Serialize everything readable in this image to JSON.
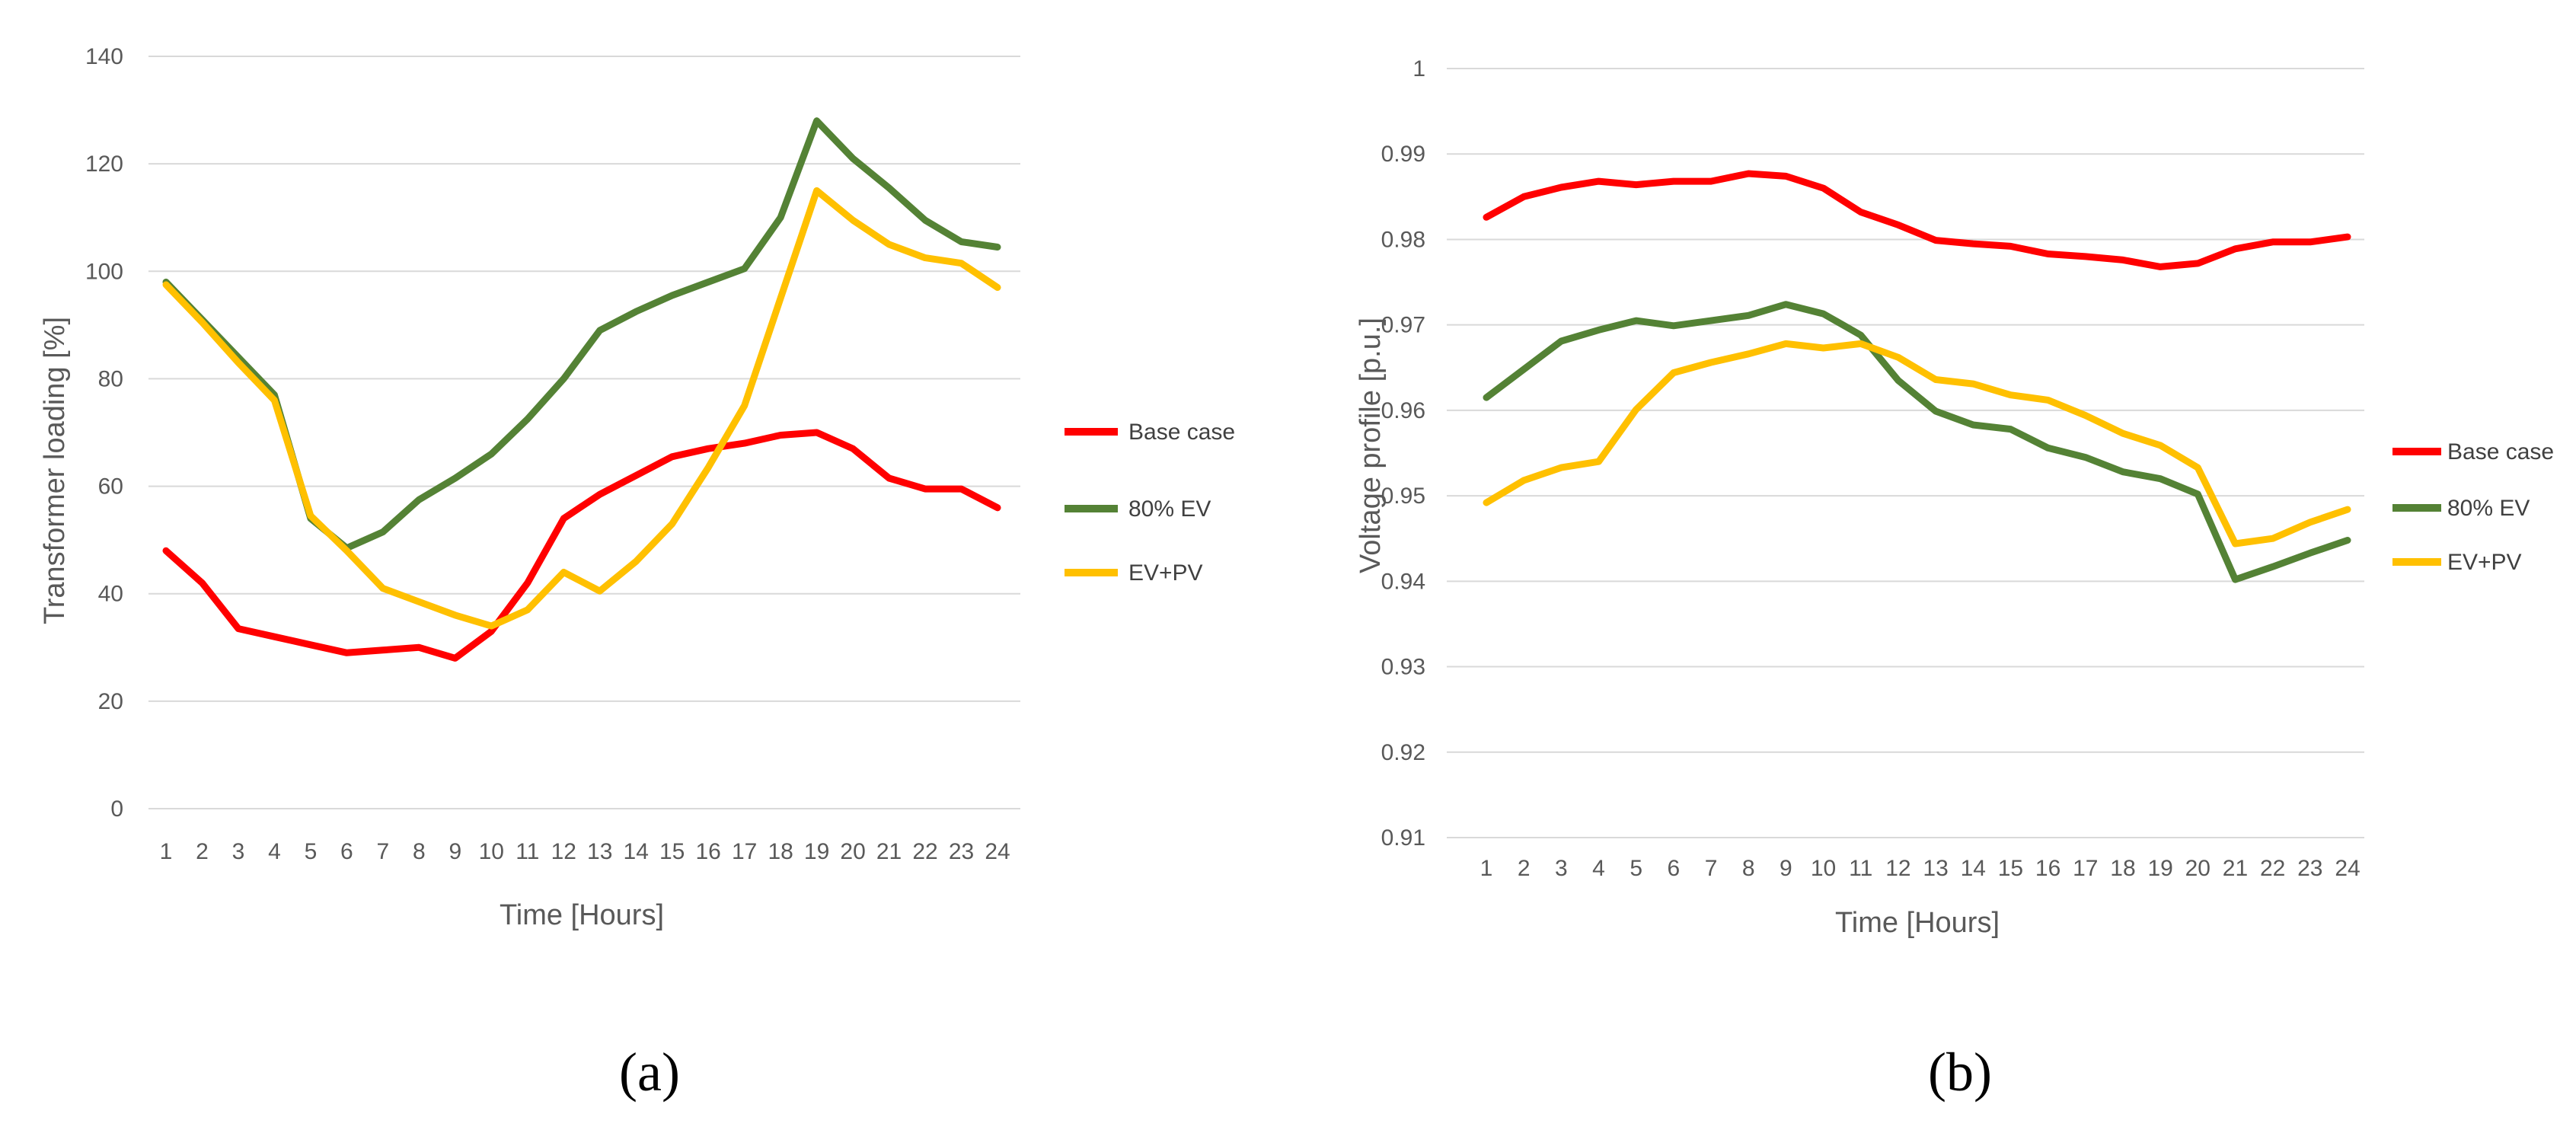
{
  "colors": {
    "base_case": "#ff0000",
    "ev80": "#548235",
    "evpv": "#ffc000"
  },
  "chart_data": [
    {
      "type": "line",
      "caption": "(a)",
      "xlabel": "Time [Hours]",
      "ylabel": "Transformer loading [%]",
      "ylim": [
        0,
        140
      ],
      "yticks": [
        "0",
        "20",
        "40",
        "60",
        "80",
        "100",
        "120",
        "140"
      ],
      "categories": [
        "1",
        "2",
        "3",
        "4",
        "5",
        "6",
        "7",
        "8",
        "9",
        "10",
        "11",
        "12",
        "13",
        "14",
        "15",
        "16",
        "17",
        "18",
        "19",
        "20",
        "21",
        "22",
        "23",
        "24"
      ],
      "series": [
        {
          "name": "Base case",
          "color": "#ff0000",
          "values": [
            48,
            42,
            33.5,
            32,
            30.5,
            29,
            29.5,
            30,
            28,
            33,
            42,
            54,
            58.5,
            62,
            65.5,
            67,
            68,
            69.5,
            70,
            67,
            61.5,
            59.5,
            59.5,
            56
          ]
        },
        {
          "name": "80% EV",
          "color": "#548235",
          "values": [
            98,
            91,
            84,
            77,
            54,
            48.5,
            51.5,
            57.5,
            61.5,
            66,
            72.5,
            80,
            89,
            92.5,
            95.5,
            98,
            100.5,
            110,
            128,
            121,
            115.5,
            109.5,
            105.5,
            104.5
          ]
        },
        {
          "name": "EV+PV",
          "color": "#ffc000",
          "values": [
            97.5,
            90.5,
            83,
            76,
            54.5,
            48,
            41,
            38.5,
            36,
            34,
            37,
            44,
            40.5,
            46,
            53,
            63.5,
            75,
            95,
            115,
            109.5,
            105,
            102.5,
            101.5,
            97
          ]
        }
      ]
    },
    {
      "type": "line",
      "caption": "(b)",
      "xlabel": "Time [Hours]",
      "ylabel": "Voltage profile [p.u.]",
      "ylim": [
        0.91,
        1.0
      ],
      "yticks": [
        "0.91",
        "0.92",
        "0.93",
        "0.94",
        "0.95",
        "0.96",
        "0.97",
        "0.98",
        "0.99",
        "1"
      ],
      "categories": [
        "1",
        "2",
        "3",
        "4",
        "5",
        "6",
        "7",
        "8",
        "9",
        "10",
        "11",
        "12",
        "13",
        "14",
        "15",
        "16",
        "17",
        "18",
        "19",
        "20",
        "21",
        "22",
        "23",
        "24"
      ],
      "series": [
        {
          "name": "Base case",
          "color": "#ff0000",
          "values": [
            0.9826,
            0.985,
            0.9861,
            0.9868,
            0.9864,
            0.9868,
            0.9868,
            0.9877,
            0.9874,
            0.986,
            0.9832,
            0.9817,
            0.9799,
            0.9795,
            0.9792,
            0.9783,
            0.978,
            0.9776,
            0.9768,
            0.9772,
            0.9789,
            0.9797,
            0.9797,
            0.9803
          ]
        },
        {
          "name": "80% EV",
          "color": "#548235",
          "values": [
            0.9615,
            0.9648,
            0.9681,
            0.9694,
            0.9705,
            0.9699,
            0.9705,
            0.9711,
            0.9724,
            0.9713,
            0.9688,
            0.9635,
            0.9599,
            0.9583,
            0.9578,
            0.9556,
            0.9545,
            0.9528,
            0.952,
            0.9502,
            0.9402,
            0.9417,
            0.9433,
            0.9448
          ]
        },
        {
          "name": "EV+PV",
          "color": "#ffc000",
          "values": [
            0.9492,
            0.9518,
            0.9533,
            0.954,
            0.9601,
            0.9644,
            0.9656,
            0.9666,
            0.9678,
            0.9673,
            0.9678,
            0.9662,
            0.9636,
            0.9631,
            0.9618,
            0.9612,
            0.9594,
            0.9573,
            0.9559,
            0.9533,
            0.9444,
            0.945,
            0.9469,
            0.9484
          ]
        }
      ]
    }
  ]
}
